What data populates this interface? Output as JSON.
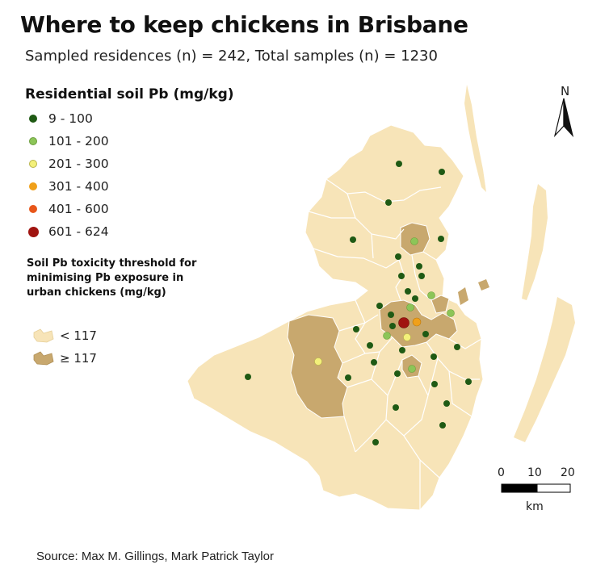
{
  "title": "Where to keep chickens in Brisbane",
  "subtitle": "Sampled residences (n) = 242, Total samples (n) = 1230",
  "legend": {
    "title": "Residential soil Pb (mg/kg)",
    "items": [
      {
        "label": "9 - 100",
        "color": "#1f5a14"
      },
      {
        "label": "101 - 200",
        "color": "#8cc558"
      },
      {
        "label": "201 - 300",
        "color": "#f3f07a"
      },
      {
        "label": "301 - 400",
        "color": "#f0a01a"
      },
      {
        "label": "401 - 600",
        "color": "#e8561a"
      },
      {
        "label": "601 - 624",
        "color": "#a01410"
      }
    ]
  },
  "threshold": {
    "title": "Soil Pb toxicity threshold for minimising Pb exposure in urban chickens (mg/kg)",
    "items": [
      {
        "label": "< 117",
        "color": "#f7e4b8"
      },
      {
        "label": "≥ 117",
        "color": "#c8a86e"
      }
    ]
  },
  "north_arrow": {
    "label": "N"
  },
  "scale_bar": {
    "ticks": [
      "0",
      "10",
      "20"
    ],
    "unit": "km"
  },
  "source": "Source: Max M. Gillings, Mark Patrick Taylor",
  "colors": {
    "land_low": "#f7e4b8",
    "land_high": "#c8a86e",
    "boundary": "#ffffff"
  }
}
